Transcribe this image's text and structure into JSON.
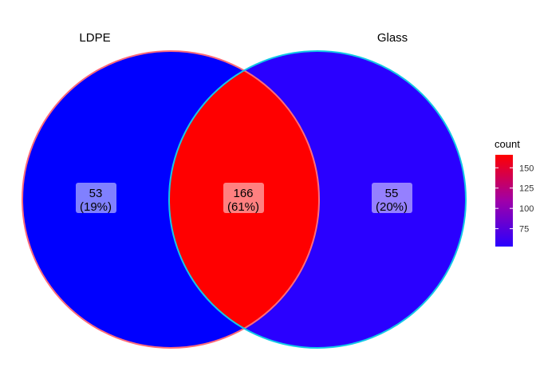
{
  "sets": [
    {
      "name": "LDPE",
      "border_color": "#ff6b7a"
    },
    {
      "name": "Glass",
      "border_color": "#13c8e6"
    }
  ],
  "regions": [
    {
      "id": "ldpe-only",
      "count": "53",
      "percent": "(19%)",
      "fill": "#0000ff"
    },
    {
      "id": "intersection",
      "count": "166",
      "percent": "(61%)",
      "fill": "#ff0000"
    },
    {
      "id": "glass-only",
      "count": "55",
      "percent": "(20%)",
      "fill": "#2a00ff"
    }
  ],
  "legend": {
    "title": "count",
    "ticks": [
      "150",
      "125",
      "100",
      "75"
    ],
    "tick_values": [
      150,
      125,
      100,
      75
    ],
    "range": [
      53,
      166
    ],
    "color_low": "#2a00ff",
    "color_high": "#ff0000"
  }
}
